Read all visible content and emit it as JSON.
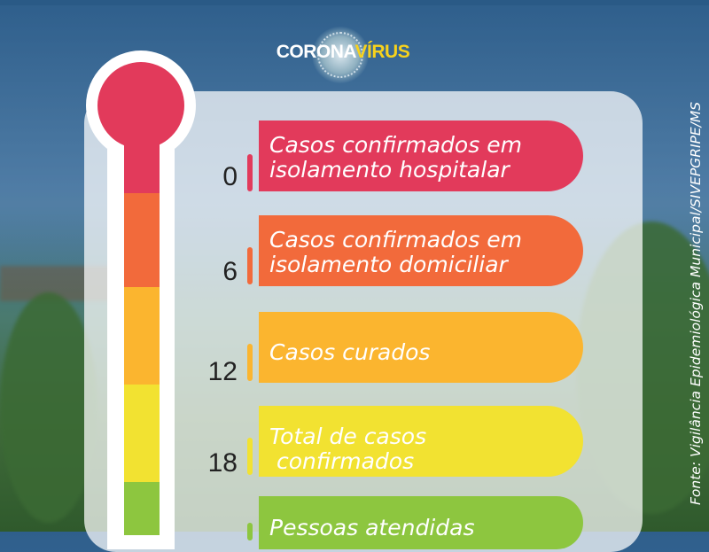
{
  "logo": {
    "part1": "CORONA",
    "part2": "VÍRUS"
  },
  "items": [
    {
      "value": "0",
      "label": "Casos confirmados em\nisolamento hospitalar",
      "color": "#e23a5b"
    },
    {
      "value": "6",
      "label": "Casos confirmados em\nisolamento domiciliar",
      "color": "#f26a3b"
    },
    {
      "value": "12",
      "label": "Casos curados",
      "color": "#fbb52f"
    },
    {
      "value": "18",
      "label": "Total de casos\n confirmados",
      "color": "#f2e231"
    },
    {
      "value": "",
      "label": "Pessoas atendidas",
      "color": "#8dc63f"
    }
  ],
  "source": "Fonte: Vigilância Epidemiológica Municipal/SIVEPGRIPE/MS"
}
